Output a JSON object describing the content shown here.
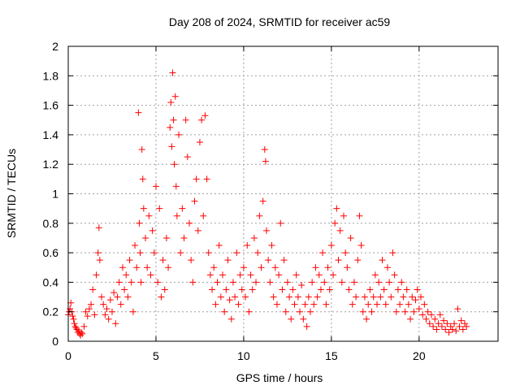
{
  "chart_data": {
    "type": "scatter",
    "title": "Day 208 of 2024, SRMTID for receiver ac59",
    "xlabel": "GPS time / hours",
    "ylabel": "SRMTID / TECUs",
    "xlim": [
      0,
      24.5
    ],
    "ylim": [
      0,
      2
    ],
    "xticks": [
      0,
      5,
      10,
      15,
      20
    ],
    "xtick_labels": [
      "0",
      "5",
      "10",
      "15",
      "20"
    ],
    "yticks": [
      0,
      0.2,
      0.4,
      0.6,
      0.8,
      1,
      1.2,
      1.4,
      1.6,
      1.8,
      2
    ],
    "ytick_labels": [
      "0",
      "0.2",
      "0.4",
      "0.6",
      "0.8",
      "1",
      "1.2",
      "1.4",
      "1.6",
      "1.8",
      "2"
    ],
    "grid": true,
    "marker": "plus",
    "color": "#ff0000",
    "series": [
      {
        "name": "SRMTID",
        "points": [
          [
            0.0,
            0.18
          ],
          [
            0.05,
            0.2
          ],
          [
            0.1,
            0.22
          ],
          [
            0.15,
            0.26
          ],
          [
            0.2,
            0.2
          ],
          [
            0.25,
            0.17
          ],
          [
            0.3,
            0.15
          ],
          [
            0.35,
            0.12
          ],
          [
            0.4,
            0.1
          ],
          [
            0.45,
            0.09
          ],
          [
            0.5,
            0.08
          ],
          [
            0.55,
            0.06
          ],
          [
            0.6,
            0.07
          ],
          [
            0.65,
            0.05
          ],
          [
            0.7,
            0.04
          ],
          [
            0.75,
            0.06
          ],
          [
            0.8,
            0.05
          ],
          [
            0.9,
            0.1
          ],
          [
            1.0,
            0.2
          ],
          [
            1.1,
            0.17
          ],
          [
            1.2,
            0.22
          ],
          [
            1.3,
            0.25
          ],
          [
            1.4,
            0.35
          ],
          [
            1.5,
            0.18
          ],
          [
            1.6,
            0.45
          ],
          [
            1.7,
            0.6
          ],
          [
            1.75,
            0.77
          ],
          [
            1.8,
            0.55
          ],
          [
            1.9,
            0.3
          ],
          [
            2.0,
            0.25
          ],
          [
            2.1,
            0.18
          ],
          [
            2.2,
            0.22
          ],
          [
            2.3,
            0.15
          ],
          [
            2.4,
            0.28
          ],
          [
            2.5,
            0.2
          ],
          [
            2.6,
            0.33
          ],
          [
            2.7,
            0.12
          ],
          [
            2.8,
            0.3
          ],
          [
            2.9,
            0.4
          ],
          [
            3.0,
            0.25
          ],
          [
            3.1,
            0.5
          ],
          [
            3.2,
            0.35
          ],
          [
            3.3,
            0.45
          ],
          [
            3.4,
            0.3
          ],
          [
            3.5,
            0.55
          ],
          [
            3.6,
            0.4
          ],
          [
            3.7,
            0.2
          ],
          [
            3.8,
            0.65
          ],
          [
            3.9,
            0.5
          ],
          [
            4.0,
            1.55
          ],
          [
            4.05,
            0.8
          ],
          [
            4.1,
            0.6
          ],
          [
            4.15,
            0.4
          ],
          [
            4.2,
            1.3
          ],
          [
            4.25,
            1.1
          ],
          [
            4.3,
            0.9
          ],
          [
            4.4,
            0.7
          ],
          [
            4.5,
            0.5
          ],
          [
            4.6,
            0.85
          ],
          [
            4.7,
            0.45
          ],
          [
            4.8,
            0.75
          ],
          [
            4.9,
            0.6
          ],
          [
            5.0,
            1.05
          ],
          [
            5.1,
            0.4
          ],
          [
            5.2,
            0.9
          ],
          [
            5.3,
            0.3
          ],
          [
            5.4,
            0.55
          ],
          [
            5.5,
            0.35
          ],
          [
            5.6,
            0.7
          ],
          [
            5.7,
            0.5
          ],
          [
            5.8,
            1.45
          ],
          [
            5.85,
            1.62
          ],
          [
            5.9,
            1.32
          ],
          [
            5.95,
            1.82
          ],
          [
            6.0,
            1.5
          ],
          [
            6.05,
            1.2
          ],
          [
            6.1,
            1.66
          ],
          [
            6.15,
            1.05
          ],
          [
            6.2,
            0.85
          ],
          [
            6.3,
            1.4
          ],
          [
            6.4,
            0.6
          ],
          [
            6.5,
            0.9
          ],
          [
            6.6,
            0.7
          ],
          [
            6.7,
            1.5
          ],
          [
            6.8,
            1.25
          ],
          [
            6.9,
            0.8
          ],
          [
            7.0,
            0.55
          ],
          [
            7.1,
            0.4
          ],
          [
            7.2,
            0.95
          ],
          [
            7.3,
            1.1
          ],
          [
            7.4,
            0.75
          ],
          [
            7.5,
            1.35
          ],
          [
            7.6,
            1.5
          ],
          [
            7.7,
            0.85
          ],
          [
            7.8,
            1.53
          ],
          [
            7.9,
            1.1
          ],
          [
            8.0,
            0.6
          ],
          [
            8.1,
            0.45
          ],
          [
            8.2,
            0.35
          ],
          [
            8.3,
            0.5
          ],
          [
            8.4,
            0.25
          ],
          [
            8.5,
            0.4
          ],
          [
            8.6,
            0.65
          ],
          [
            8.7,
            0.3
          ],
          [
            8.8,
            0.45
          ],
          [
            8.9,
            0.2
          ],
          [
            9.0,
            0.35
          ],
          [
            9.1,
            0.55
          ],
          [
            9.2,
            0.28
          ],
          [
            9.3,
            0.15
          ],
          [
            9.4,
            0.4
          ],
          [
            9.5,
            0.3
          ],
          [
            9.6,
            0.6
          ],
          [
            9.7,
            0.25
          ],
          [
            9.8,
            0.45
          ],
          [
            9.9,
            0.35
          ],
          [
            10.0,
            0.5
          ],
          [
            10.1,
            0.3
          ],
          [
            10.2,
            0.65
          ],
          [
            10.3,
            0.2
          ],
          [
            10.4,
            0.45
          ],
          [
            10.5,
            0.35
          ],
          [
            10.6,
            0.7
          ],
          [
            10.7,
            0.4
          ],
          [
            10.8,
            0.6
          ],
          [
            10.9,
            0.85
          ],
          [
            11.0,
            0.5
          ],
          [
            11.1,
            0.95
          ],
          [
            11.2,
            1.3
          ],
          [
            11.25,
            1.22
          ],
          [
            11.3,
            0.75
          ],
          [
            11.4,
            0.55
          ],
          [
            11.5,
            0.4
          ],
          [
            11.6,
            0.65
          ],
          [
            11.7,
            0.3
          ],
          [
            11.8,
            0.5
          ],
          [
            11.9,
            0.25
          ],
          [
            12.0,
            0.45
          ],
          [
            12.1,
            0.8
          ],
          [
            12.2,
            0.35
          ],
          [
            12.3,
            0.55
          ],
          [
            12.4,
            0.2
          ],
          [
            12.5,
            0.4
          ],
          [
            12.6,
            0.3
          ],
          [
            12.7,
            0.15
          ],
          [
            12.8,
            0.35
          ],
          [
            12.9,
            0.25
          ],
          [
            13.0,
            0.45
          ],
          [
            13.1,
            0.3
          ],
          [
            13.2,
            0.2
          ],
          [
            13.3,
            0.38
          ],
          [
            13.4,
            0.15
          ],
          [
            13.5,
            0.25
          ],
          [
            13.6,
            0.1
          ],
          [
            13.7,
            0.3
          ],
          [
            13.8,
            0.2
          ],
          [
            13.9,
            0.4
          ],
          [
            14.0,
            0.25
          ],
          [
            14.1,
            0.5
          ],
          [
            14.2,
            0.3
          ],
          [
            14.3,
            0.45
          ],
          [
            14.4,
            0.35
          ],
          [
            14.5,
            0.6
          ],
          [
            14.6,
            0.4
          ],
          [
            14.7,
            0.25
          ],
          [
            14.8,
            0.5
          ],
          [
            14.9,
            0.35
          ],
          [
            15.0,
            0.65
          ],
          [
            15.1,
            0.45
          ],
          [
            15.2,
            0.8
          ],
          [
            15.3,
            0.9
          ],
          [
            15.4,
            0.55
          ],
          [
            15.5,
            0.75
          ],
          [
            15.6,
            0.4
          ],
          [
            15.7,
            0.85
          ],
          [
            15.8,
            0.6
          ],
          [
            15.9,
            0.5
          ],
          [
            16.0,
            0.35
          ],
          [
            16.1,
            0.7
          ],
          [
            16.2,
            0.25
          ],
          [
            16.3,
            0.4
          ],
          [
            16.4,
            0.3
          ],
          [
            16.5,
            0.55
          ],
          [
            16.6,
            0.85
          ],
          [
            16.7,
            0.65
          ],
          [
            16.8,
            0.2
          ],
          [
            16.9,
            0.3
          ],
          [
            17.0,
            0.15
          ],
          [
            17.1,
            0.25
          ],
          [
            17.2,
            0.35
          ],
          [
            17.3,
            0.2
          ],
          [
            17.4,
            0.3
          ],
          [
            17.5,
            0.45
          ],
          [
            17.6,
            0.25
          ],
          [
            17.7,
            0.4
          ],
          [
            17.8,
            0.3
          ],
          [
            17.9,
            0.55
          ],
          [
            18.0,
            0.35
          ],
          [
            18.1,
            0.25
          ],
          [
            18.2,
            0.5
          ],
          [
            18.3,
            0.4
          ],
          [
            18.4,
            0.3
          ],
          [
            18.5,
            0.6
          ],
          [
            18.6,
            0.45
          ],
          [
            18.7,
            0.2
          ],
          [
            18.8,
            0.35
          ],
          [
            18.9,
            0.25
          ],
          [
            19.0,
            0.4
          ],
          [
            19.1,
            0.3
          ],
          [
            19.2,
            0.2
          ],
          [
            19.3,
            0.35
          ],
          [
            19.4,
            0.25
          ],
          [
            19.5,
            0.15
          ],
          [
            19.6,
            0.3
          ],
          [
            19.7,
            0.2
          ],
          [
            19.8,
            0.28
          ],
          [
            19.9,
            0.35
          ],
          [
            20.0,
            0.22
          ],
          [
            20.1,
            0.3
          ],
          [
            20.2,
            0.18
          ],
          [
            20.3,
            0.25
          ],
          [
            20.4,
            0.15
          ],
          [
            20.5,
            0.2
          ],
          [
            20.6,
            0.12
          ],
          [
            20.7,
            0.18
          ],
          [
            20.8,
            0.1
          ],
          [
            20.9,
            0.15
          ],
          [
            21.0,
            0.08
          ],
          [
            21.1,
            0.12
          ],
          [
            21.2,
            0.18
          ],
          [
            21.3,
            0.1
          ],
          [
            21.4,
            0.14
          ],
          [
            21.5,
            0.08
          ],
          [
            21.6,
            0.12
          ],
          [
            21.7,
            0.06
          ],
          [
            21.8,
            0.1
          ],
          [
            21.9,
            0.08
          ],
          [
            22.0,
            0.12
          ],
          [
            22.1,
            0.07
          ],
          [
            22.2,
            0.22
          ],
          [
            22.3,
            0.1
          ],
          [
            22.4,
            0.14
          ],
          [
            22.5,
            0.08
          ],
          [
            22.6,
            0.12
          ],
          [
            22.7,
            0.1
          ]
        ]
      }
    ]
  }
}
